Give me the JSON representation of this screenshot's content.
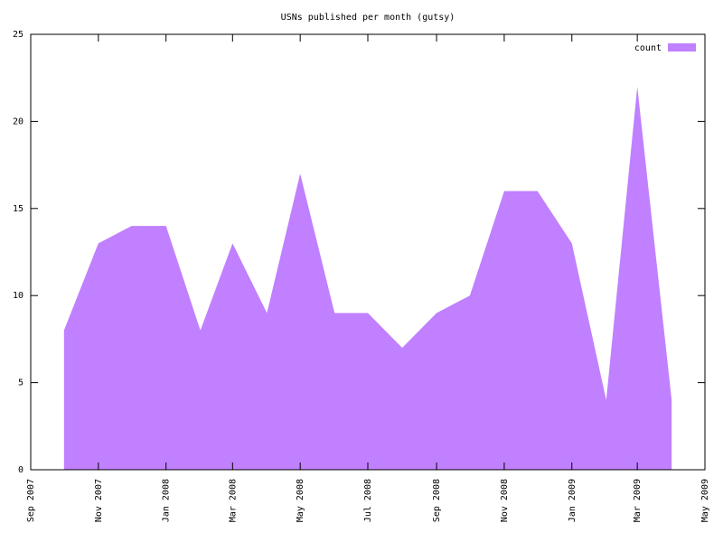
{
  "chart_data": {
    "type": "area",
    "title": "USNs published per month (gutsy)",
    "x": [
      "2007-10",
      "2007-11",
      "2007-12",
      "2008-01",
      "2008-02",
      "2008-03",
      "2008-04",
      "2008-05",
      "2008-06",
      "2008-07",
      "2008-08",
      "2008-09",
      "2008-10",
      "2008-11",
      "2008-12",
      "2009-01",
      "2009-02",
      "2009-03",
      "2009-04"
    ],
    "series": [
      {
        "name": "count",
        "color": "#c080ff",
        "values": [
          8,
          13,
          14,
          14,
          8,
          13,
          9,
          17,
          9,
          9,
          7,
          9,
          10,
          16,
          16,
          13,
          4,
          22,
          4
        ]
      }
    ],
    "xlim": [
      "2007-09",
      "2009-05"
    ],
    "xticks": [
      {
        "value": "2007-09",
        "label": "Sep 2007"
      },
      {
        "value": "2007-11",
        "label": "Nov 2007"
      },
      {
        "value": "2008-01",
        "label": "Jan 2008"
      },
      {
        "value": "2008-03",
        "label": "Mar 2008"
      },
      {
        "value": "2008-05",
        "label": "May 2008"
      },
      {
        "value": "2008-07",
        "label": "Jul 2008"
      },
      {
        "value": "2008-09",
        "label": "Sep 2008"
      },
      {
        "value": "2008-11",
        "label": "Nov 2008"
      },
      {
        "value": "2009-01",
        "label": "Jan 2009"
      },
      {
        "value": "2009-03",
        "label": "Mar 2009"
      },
      {
        "value": "2009-05",
        "label": "May 2009"
      }
    ],
    "ylim": [
      0,
      25
    ],
    "yticks": [
      0,
      5,
      10,
      15,
      20,
      25
    ],
    "legend": "top-right"
  }
}
